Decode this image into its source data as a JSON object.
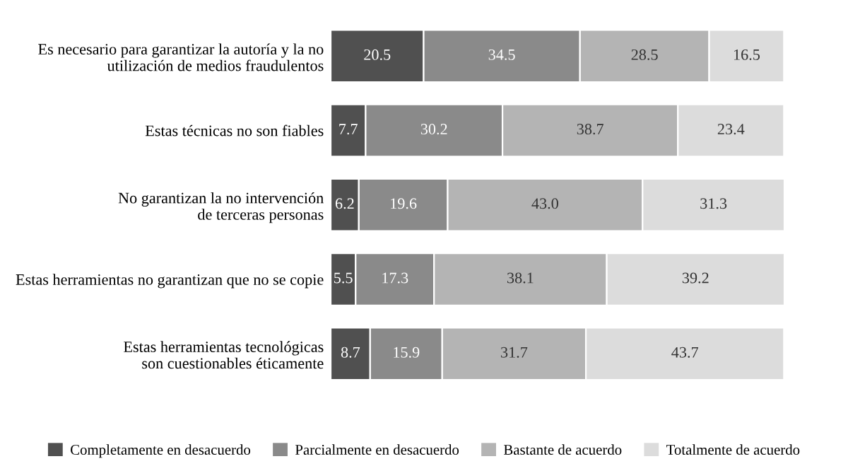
{
  "chart_data": {
    "type": "bar",
    "orientation": "horizontal",
    "stacked": true,
    "tick_labels": "y",
    "grid": false,
    "legend": "bottom",
    "categories": [
      "Es necesario para garantizar la autoría y la no\nutilización de medios fraudulentos",
      "Estas técnicas no son fiables",
      "No garantizan la no intervención\nde terceras personas",
      "Estas herramientas no garantizan que no se copie",
      "Estas herramientas tecnológicas\nson cuestionables éticamente"
    ],
    "series": [
      {
        "name": "Completamente en desacuerdo",
        "color": "#505050",
        "values": [
          20.5,
          7.7,
          6.2,
          5.5,
          8.7
        ],
        "value_labels": [
          "20.5",
          "7.7",
          "6.2",
          "5.5",
          "8.7"
        ]
      },
      {
        "name": "Parcialmente en desacuerdo",
        "color": "#8a8a8a",
        "values": [
          34.5,
          30.2,
          19.6,
          17.3,
          15.9
        ],
        "value_labels": [
          "34.5",
          "30.2",
          "19.6",
          "17.3",
          "15.9"
        ]
      },
      {
        "name": "Bastante de acuerdo",
        "color": "#b4b4b4",
        "values": [
          28.5,
          38.7,
          43.0,
          38.1,
          31.7
        ],
        "value_labels": [
          "28.5",
          "38.7",
          "43.0",
          "38.1",
          "31.7"
        ]
      },
      {
        "name": "Totalmente de acuerdo",
        "color": "#dcdcdc",
        "values": [
          16.5,
          23.4,
          31.3,
          39.2,
          43.7
        ],
        "value_labels": [
          "16.5",
          "23.4",
          "31.3",
          "39.2",
          "43.7"
        ]
      }
    ]
  }
}
